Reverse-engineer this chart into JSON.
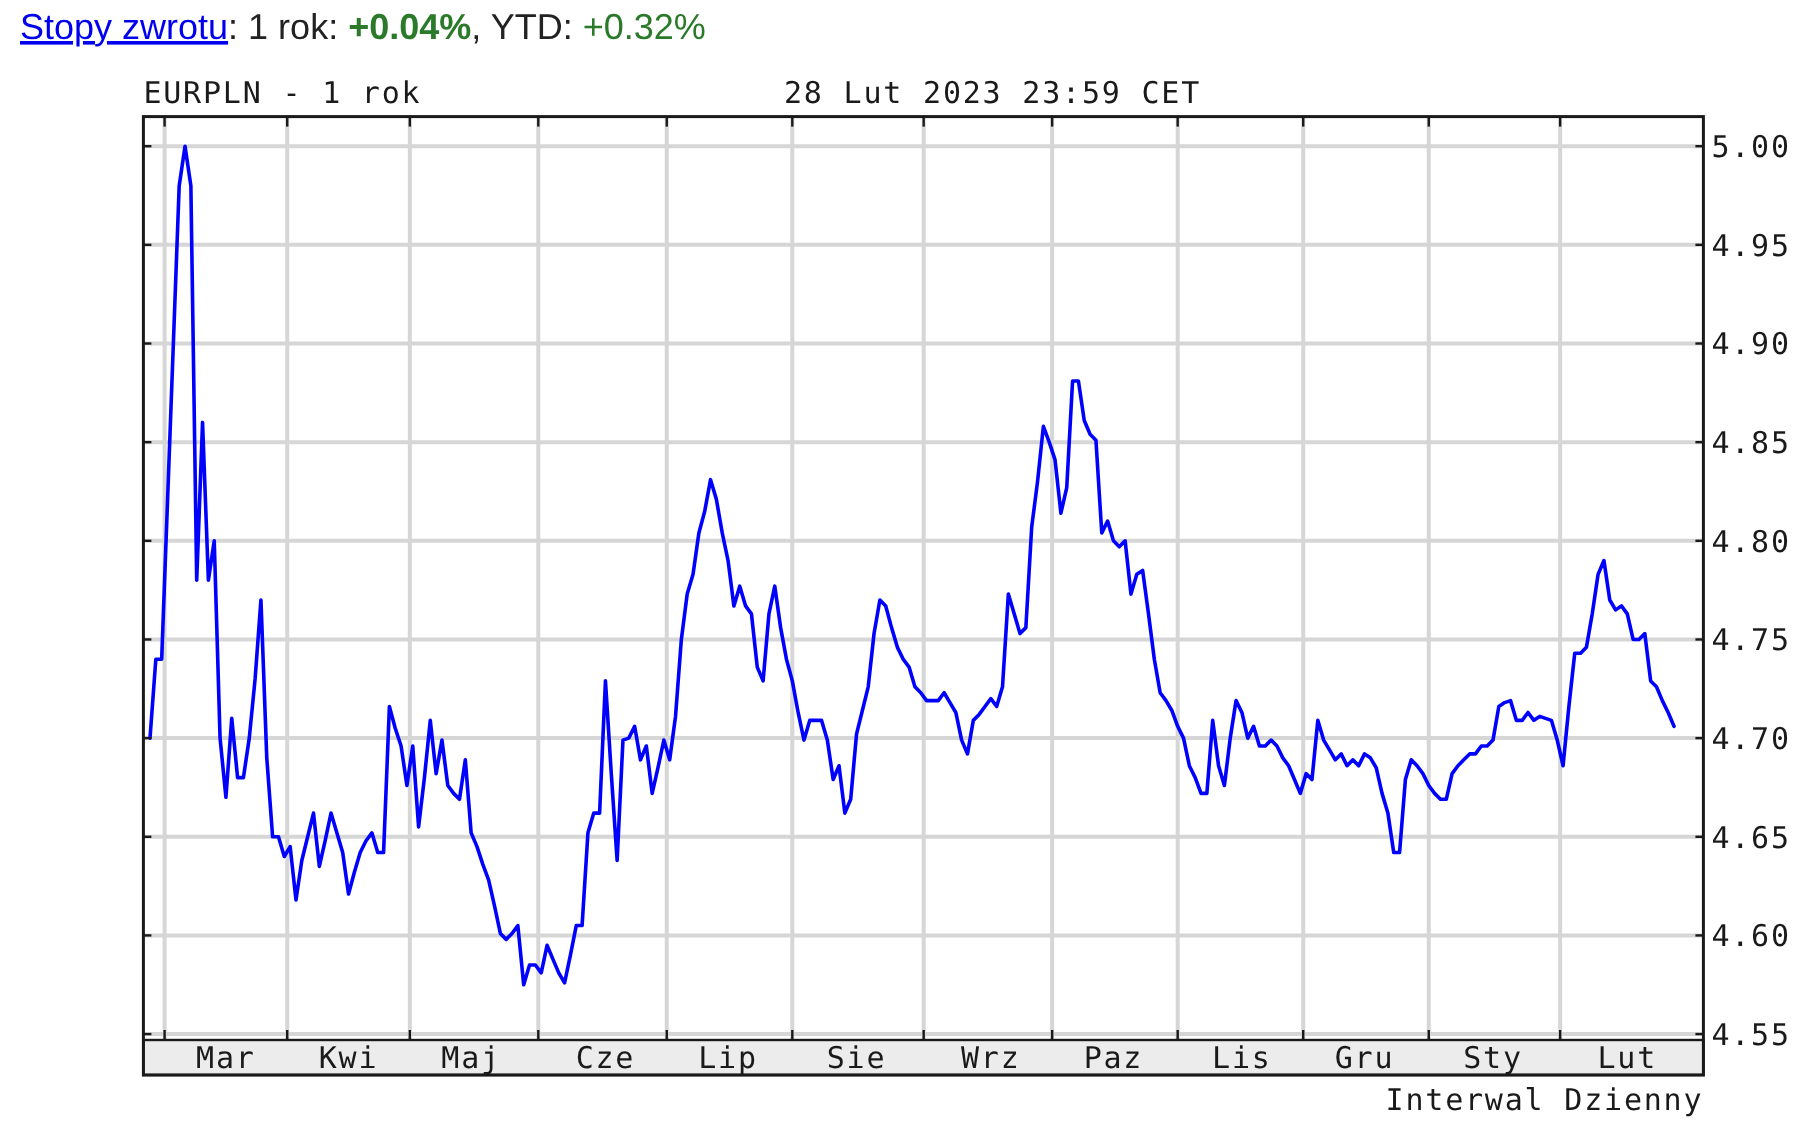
{
  "chart_data": {
    "type": "line",
    "title": "EURPLN - 1 rok",
    "subtitle": "28 Lut 2023 23:59 CET",
    "annotations": [
      "Stopy zwrotu",
      ": 1 rok: ",
      "+0.04%",
      ", YTD: ",
      "+0.32%",
      "Interwal Dzienny"
    ],
    "color": "#0000ff",
    "grid": true,
    "categories": [
      null,
      null,
      null,
      null,
      null,
      null,
      null,
      null,
      null,
      null,
      null,
      null,
      null,
      "Mar",
      null,
      null,
      null,
      null,
      null,
      null,
      null,
      null,
      null,
      null,
      null,
      null,
      null,
      null,
      null,
      null,
      null,
      null,
      null,
      null,
      "Kwi",
      null,
      null,
      null,
      null,
      null,
      null,
      null,
      null,
      null,
      null,
      null,
      null,
      null,
      null,
      null,
      null,
      null,
      null,
      null,
      null,
      "Maj",
      null,
      null,
      null,
      null,
      null,
      null,
      null,
      null,
      null,
      null,
      null,
      null,
      null,
      null,
      null,
      null,
      null,
      null,
      null,
      null,
      null,
      null,
      "Cze",
      null,
      null,
      null,
      null,
      null,
      null,
      null,
      null,
      null,
      null,
      null,
      null,
      null,
      null,
      null,
      null,
      null,
      null,
      null,
      null,
      "Lip",
      null,
      null,
      null,
      null,
      null,
      null,
      null,
      null,
      null,
      null,
      null,
      null,
      null,
      null,
      null,
      null,
      null,
      null,
      null,
      null,
      null,
      "Sie",
      null,
      null,
      null,
      null,
      null,
      null,
      null,
      null,
      null,
      null,
      null,
      null,
      null,
      null,
      null,
      null,
      null,
      null,
      null,
      null,
      null,
      null,
      "Wrz",
      null,
      null,
      null,
      null,
      null,
      null,
      null,
      null,
      null,
      null,
      null,
      null,
      null,
      null,
      null,
      null,
      null,
      null,
      null,
      null,
      "Paz",
      null,
      null,
      null,
      null,
      null,
      null,
      null,
      null,
      null,
      null,
      null,
      null,
      null,
      null,
      null,
      null,
      null,
      null,
      null,
      null,
      null,
      "Lis",
      null,
      null,
      null,
      null,
      null,
      null,
      null,
      null,
      null,
      null,
      null,
      null,
      null,
      null,
      null,
      null,
      null,
      null,
      null,
      null,
      "Gru",
      null,
      null,
      null,
      null,
      null,
      null,
      null,
      null,
      null,
      null,
      null,
      null,
      null,
      null,
      null,
      null,
      null,
      null,
      null,
      null,
      null,
      "Sty",
      null,
      null,
      null,
      null,
      null,
      null,
      null,
      null,
      null,
      null,
      null,
      null,
      null,
      null,
      null,
      null,
      null,
      null,
      null,
      null,
      null,
      null,
      "Lut",
      null,
      null,
      null,
      null,
      null,
      null,
      null,
      null
    ],
    "ylim": [
      4.547,
      5.015
    ],
    "yticks": [
      4.55,
      {
        "value": 4.6,
        "label": "4.60"
      },
      4.65,
      {
        "value": 4.7,
        "label": "4.70"
      },
      4.75,
      {
        "value": 4.8,
        "label": "4.80"
      },
      4.85,
      {
        "value": 4.9,
        "label": "4.90"
      },
      4.95,
      {
        "value": 5.0,
        "label": "5.00"
      }
    ],
    "values": [
      4.7,
      4.74,
      4.74,
      4.82,
      4.9,
      4.98,
      5.0,
      4.98,
      4.78,
      4.86,
      4.78,
      4.8,
      4.7,
      4.67,
      4.71,
      4.68,
      4.68,
      4.7,
      4.73,
      4.77,
      4.69,
      4.65,
      4.65,
      4.64,
      4.645,
      4.618,
      4.638,
      4.65,
      4.662,
      4.635,
      4.648,
      4.662,
      4.652,
      4.642,
      4.621,
      4.632,
      4.642,
      4.648,
      4.652,
      4.642,
      4.642,
      4.716,
      4.705,
      4.696,
      4.676,
      4.696,
      4.655,
      4.68,
      4.709,
      4.682,
      4.699,
      4.676,
      4.672,
      4.669,
      4.689,
      4.652,
      4.645,
      4.636,
      4.628,
      4.615,
      4.601,
      4.598,
      4.601,
      4.605,
      4.575,
      4.585,
      4.585,
      4.581,
      4.595,
      4.588,
      4.581,
      4.576,
      4.59,
      4.605,
      4.605,
      4.652,
      4.662,
      4.662,
      4.729,
      4.682,
      4.638,
      4.699,
      4.7,
      4.706,
      4.689,
      4.696,
      4.672,
      4.685,
      4.699,
      4.689,
      4.711,
      4.75,
      4.773,
      4.783,
      4.804,
      4.815,
      4.831,
      4.821,
      4.804,
      4.79,
      4.767,
      4.777,
      4.767,
      4.763,
      4.736,
      4.729,
      4.763,
      4.777,
      4.756,
      4.74,
      4.729,
      4.713,
      4.699,
      4.709,
      4.709,
      4.709,
      4.699,
      4.679,
      4.686,
      4.662,
      4.669,
      4.702,
      4.714,
      4.726,
      4.753,
      4.77,
      4.767,
      4.756,
      4.746,
      4.74,
      4.736,
      4.726,
      4.723,
      4.719,
      4.719,
      4.719,
      4.723,
      4.718,
      4.713,
      4.699,
      4.692,
      4.709,
      4.712,
      4.716,
      4.72,
      4.716,
      4.726,
      4.773,
      4.763,
      4.753,
      4.756,
      4.807,
      4.83,
      4.858,
      4.85,
      4.841,
      4.814,
      4.827,
      4.881,
      4.881,
      4.861,
      4.854,
      4.851,
      4.804,
      4.81,
      4.8,
      4.797,
      4.8,
      4.773,
      4.783,
      4.785,
      4.763,
      4.74,
      4.723,
      4.719,
      4.714,
      4.706,
      4.7,
      4.686,
      4.68,
      4.672,
      4.672,
      4.709,
      4.686,
      4.676,
      4.7,
      4.719,
      4.713,
      4.7,
      4.706,
      4.696,
      4.696,
      4.699,
      4.696,
      4.69,
      4.686,
      4.679,
      4.672,
      4.682,
      4.679,
      4.709,
      4.699,
      4.694,
      4.689,
      4.692,
      4.686,
      4.689,
      4.686,
      4.692,
      4.69,
      4.685,
      4.672,
      4.662,
      4.642,
      4.642,
      4.679,
      4.689,
      4.686,
      4.682,
      4.676,
      4.672,
      4.669,
      4.669,
      4.682,
      4.686,
      4.689,
      4.692,
      4.692,
      4.696,
      4.696,
      4.699,
      4.716,
      4.718,
      4.719,
      4.709,
      4.709,
      4.713,
      4.709,
      4.711,
      4.71,
      4.709,
      4.699,
      4.686,
      4.716,
      4.743,
      4.743,
      4.746,
      4.763,
      4.783,
      4.79,
      4.77,
      4.765,
      4.767,
      4.763,
      4.75,
      4.75,
      4.753,
      4.729,
      4.726,
      4.719,
      4.713,
      4.706
    ]
  }
}
